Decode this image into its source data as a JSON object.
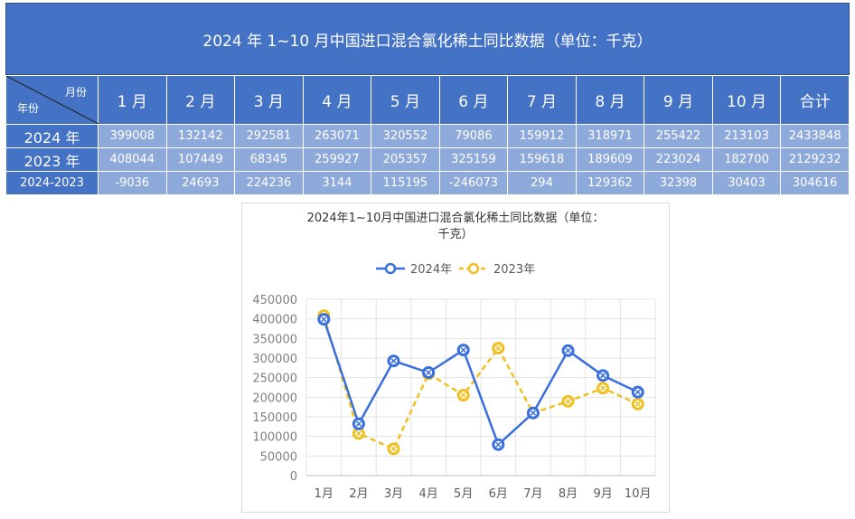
{
  "banner_title": "2024 年 1~10 月中国进口混合氯化稀土同比数据（单位：千克）",
  "table": {
    "corner_month": "月份",
    "corner_year": "年份",
    "headers": [
      "1 月",
      "2 月",
      "3 月",
      "4 月",
      "5 月",
      "6 月",
      "7 月",
      "8 月",
      "9 月",
      "10 月",
      "合计"
    ],
    "rows": [
      {
        "label": "2024 年",
        "values": [
          "399008",
          "132142",
          "292581",
          "263071",
          "320552",
          "79086",
          "159912",
          "318971",
          "255422",
          "213103",
          "2433848"
        ]
      },
      {
        "label": "2023 年",
        "values": [
          "408044",
          "107449",
          "68345",
          "259927",
          "205357",
          "325159",
          "159618",
          "189609",
          "223024",
          "182700",
          "2129232"
        ]
      },
      {
        "label": "2024-2023",
        "values": [
          "-9036",
          "24693",
          "224236",
          "3144",
          "115195",
          "-246073",
          "294",
          "129362",
          "32398",
          "30403",
          "304616"
        ]
      }
    ]
  },
  "chart_data": {
    "type": "line",
    "title_line1": "2024年1~10月中国进口混合氯化稀土同比数据（单位：",
    "title_line2": "千克）",
    "categories": [
      "1月",
      "2月",
      "3月",
      "4月",
      "5月",
      "6月",
      "7月",
      "8月",
      "9月",
      "10月"
    ],
    "series": [
      {
        "name": "2024年",
        "color": "#3a6fe0",
        "dash": "solid",
        "values": [
          399008,
          132142,
          292581,
          263071,
          320552,
          79086,
          159912,
          318971,
          255422,
          213103
        ]
      },
      {
        "name": "2023年",
        "color": "#f0c020",
        "dash": "dashed",
        "values": [
          408044,
          107449,
          68345,
          259927,
          205357,
          325159,
          159618,
          189609,
          223024,
          182700
        ]
      }
    ],
    "ylim": [
      0,
      450000
    ],
    "yticks": [
      "0",
      "50000",
      "100000",
      "150000",
      "200000",
      "250000",
      "300000",
      "350000",
      "400000",
      "450000"
    ],
    "grid": true,
    "legend_position": "top"
  }
}
